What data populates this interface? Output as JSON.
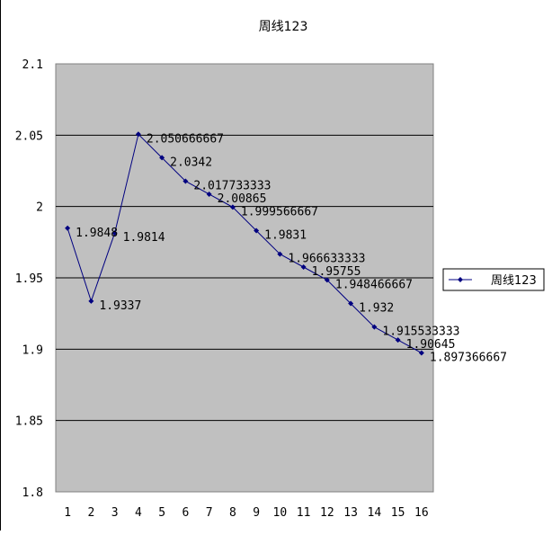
{
  "chart_data": {
    "type": "line",
    "title": "周线123",
    "xlabel": "",
    "ylabel": "",
    "categories": [
      "1",
      "2",
      "3",
      "4",
      "5",
      "6",
      "7",
      "8",
      "9",
      "10",
      "11",
      "12",
      "13",
      "14",
      "15",
      "16"
    ],
    "series": [
      {
        "name": "周线123",
        "values": [
          1.9848,
          1.9337,
          1.9814,
          2.050666667,
          2.0342,
          2.017733333,
          2.00865,
          1.999566667,
          1.9831,
          1.966633333,
          1.95755,
          1.948466667,
          1.932,
          1.915533333,
          1.90645,
          1.897366667
        ],
        "labels": [
          "1.9848",
          "1.9337",
          "1.9814",
          "2.050666667",
          "2.0342",
          "2.017733333",
          "2.00865",
          "1.999566667",
          "1.9831",
          "1.966633333",
          "1.95755",
          "1.948466667",
          "1.932",
          "1.915533333",
          "1.90645",
          "1.897366667"
        ],
        "color": "#000080"
      }
    ],
    "ylim": [
      1.8,
      2.1
    ],
    "yticks": [
      "1.8",
      "1.85",
      "1.9",
      "1.95",
      "2",
      "2.05",
      "2.1"
    ],
    "grid": true,
    "plot_background": "#c0c0c0",
    "legend_position": "right"
  }
}
